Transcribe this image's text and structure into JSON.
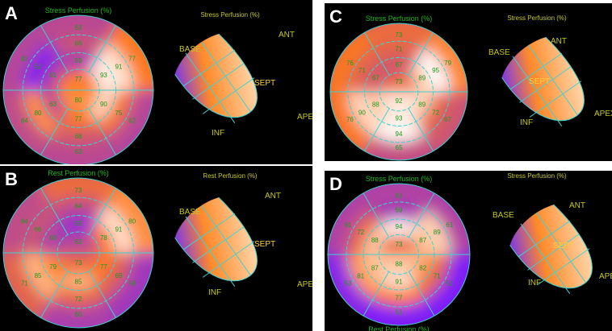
{
  "panels": [
    {
      "letter": "A",
      "polar_title": "Stress Perfusion (%)",
      "view3d_title": "Stress Perfusion (%)",
      "center": [
        77,
        80
      ],
      "ring1": [
        59,
        93,
        90,
        77,
        63,
        61
      ],
      "ring2": [
        66,
        91,
        75,
        68,
        80,
        52
      ],
      "ring3": [
        63,
        77,
        62,
        63,
        64,
        62
      ]
    },
    {
      "letter": "B",
      "polar_title": "Rest Perfusion (%)",
      "view3d_title": "Rest Perfusion (%)",
      "center": [
        62,
        73
      ],
      "ring1": [
        55,
        78,
        77,
        85,
        79,
        60
      ],
      "ring2": [
        64,
        91,
        69,
        72,
        85,
        66
      ],
      "ring3": [
        73,
        80,
        58,
        60,
        71,
        64
      ]
    },
    {
      "letter": "C",
      "polar_title": "Stress Perfusion (%)",
      "view3d_title": "Stress Perfusion (%)",
      "center": [
        73,
        92
      ],
      "ring1": [
        67,
        89,
        89,
        93,
        88,
        67
      ],
      "ring2": [
        71,
        95,
        72,
        94,
        90,
        71
      ],
      "ring3": [
        73,
        79,
        67,
        65,
        76,
        76
      ]
    },
    {
      "letter": "D",
      "polar_title": "Stress Perfusion (%)",
      "view3d_title": "Stress Perfusion (%)",
      "polar_bottom_title": "Rest Perfusion (%)",
      "center": [
        73,
        88
      ],
      "ring1": [
        94,
        87,
        82,
        91,
        87,
        88
      ],
      "ring2": [
        59,
        89,
        71,
        77,
        81,
        72
      ],
      "ring3": [
        61,
        61,
        51,
        51,
        53,
        61
      ]
    }
  ],
  "orientation_labels": {
    "base": "BASE",
    "ant": "ANT",
    "sept": "SEPT",
    "inf": "INF",
    "apex": "APEX"
  },
  "colors": {
    "low": "#7a1cff",
    "mid": "#ff7a1a",
    "high": "#ffffff",
    "grid": "#40d0d0",
    "value_text": "#1c9a1c",
    "title": "#1fb81f",
    "labels": "#c8c81a"
  }
}
